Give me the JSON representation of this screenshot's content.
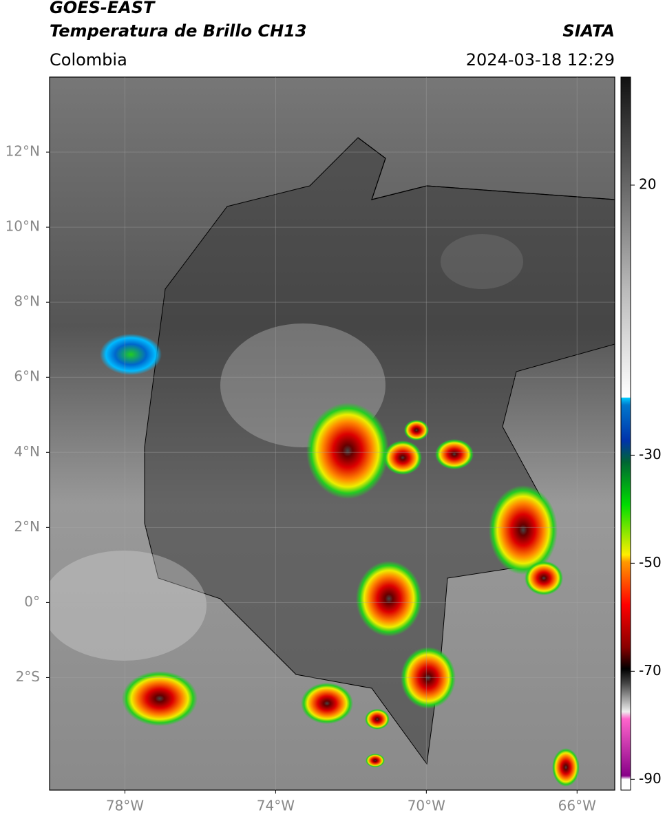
{
  "header": {
    "title": "GOES-EAST",
    "subtitle": "Temperatura de Brillo CH13",
    "source": "SIATA",
    "region": "Colombia",
    "timestamp": "2024-03-18 12:29"
  },
  "map": {
    "xlim": [
      -80,
      -65
    ],
    "ylim": [
      -5,
      14
    ],
    "xticks": [
      {
        "value": -78,
        "label": "78°W"
      },
      {
        "value": -74,
        "label": "74°W"
      },
      {
        "value": -70,
        "label": "70°W"
      },
      {
        "value": -66,
        "label": "66°W"
      }
    ],
    "yticks": [
      {
        "value": 12,
        "label": "12°N"
      },
      {
        "value": 10,
        "label": "10°N"
      },
      {
        "value": 8,
        "label": "8°N"
      },
      {
        "value": 6,
        "label": "6°N"
      },
      {
        "value": 4,
        "label": "4°N"
      },
      {
        "value": 2,
        "label": "2°N"
      },
      {
        "value": 0,
        "label": "0°"
      },
      {
        "value": -2,
        "label": "2°S"
      }
    ],
    "grid": true
  },
  "colorbar": {
    "lim": [
      -92,
      40
    ],
    "ticks": [
      20,
      -30,
      -50,
      -70,
      -90
    ]
  }
}
